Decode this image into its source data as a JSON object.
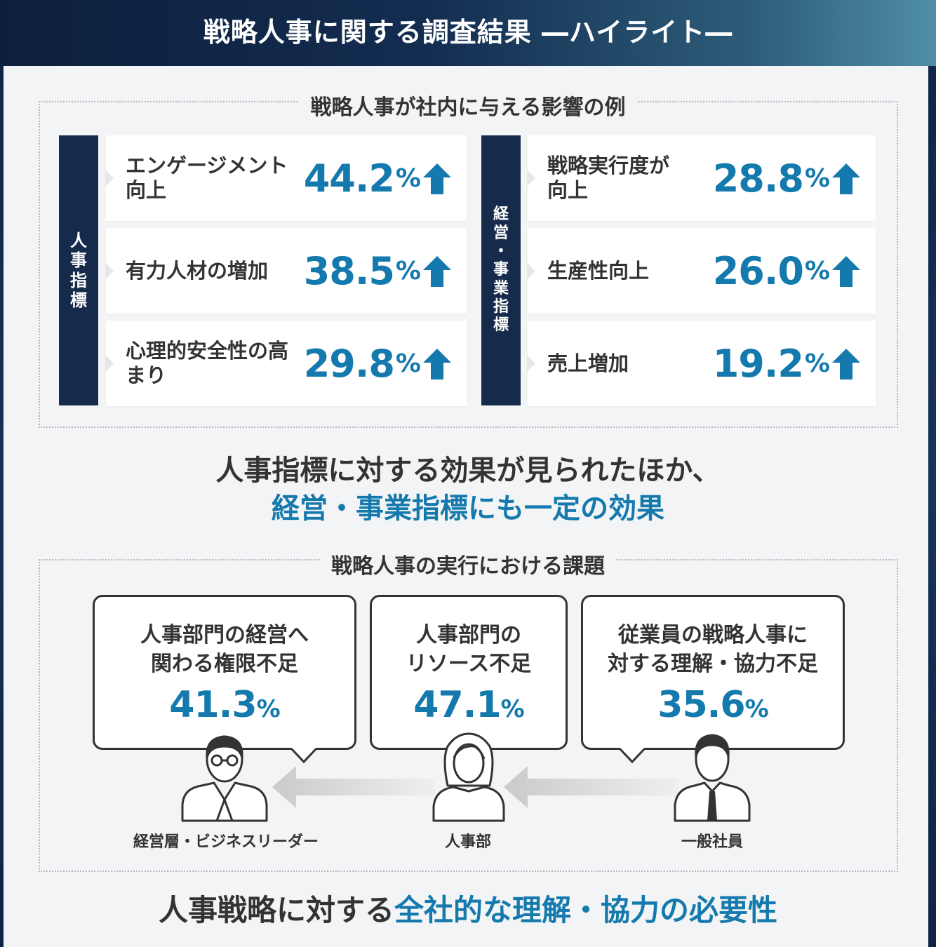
{
  "header": {
    "title": "戦略人事に関する調査結果 ―ハイライト―"
  },
  "impact_section": {
    "label": "戦略人事が社内に与える影響の例",
    "hr_group": {
      "label_chars": [
        "人",
        "事",
        "指",
        "標"
      ],
      "items": [
        {
          "label": "エンゲージメント向上",
          "value": "44.2",
          "unit": "%",
          "trend": "up-arrow-icon"
        },
        {
          "label": "有力人材の増加",
          "value": "38.5",
          "unit": "%",
          "trend": "up-arrow-icon"
        },
        {
          "label": "心理的安全性の高まり",
          "value": "29.8",
          "unit": "%",
          "trend": "up-arrow-icon"
        }
      ]
    },
    "biz_group": {
      "label_chars": [
        "経",
        "営",
        "・",
        "事",
        "業",
        "指",
        "標"
      ],
      "items": [
        {
          "label": "戦略実行度が向上",
          "value": "28.8",
          "unit": "%",
          "trend": "up-arrow-icon"
        },
        {
          "label": "生産性向上",
          "value": "26.0",
          "unit": "%",
          "trend": "up-arrow-icon"
        },
        {
          "label": "売上増加",
          "value": "19.2",
          "unit": "%",
          "trend": "up-arrow-icon"
        }
      ]
    }
  },
  "summary": {
    "line1": "人事指標に対する効果が見られたほか、",
    "line2": "経営・事業指標にも一定の効果"
  },
  "challenge_section": {
    "label": "戦略人事の実行における課題",
    "bubbles": [
      {
        "line1": "人事部門の経営へ",
        "line2": "関わる権限不足",
        "value": "41.3",
        "unit": "%"
      },
      {
        "line1": "人事部門の",
        "line2": "リソース不足",
        "value": "47.1",
        "unit": "%"
      },
      {
        "line1": "従業員の戦略人事に",
        "line2": "対する理解・協力不足",
        "value": "35.6",
        "unit": "%"
      }
    ],
    "people": [
      {
        "label": "経営層・ビジネスリーダー",
        "icon": "executive-icon"
      },
      {
        "label": "人事部",
        "icon": "hr-person-icon"
      },
      {
        "label": "一般社員",
        "icon": "employee-icon"
      }
    ]
  },
  "bottom": {
    "text_plain": "人事戦略に対する",
    "text_highlight": "全社的な理解・協力の必要性"
  },
  "colors": {
    "accent": "#1479ad",
    "navy": "#162b4c",
    "text": "#333333",
    "panel": "#f3f4f5"
  }
}
